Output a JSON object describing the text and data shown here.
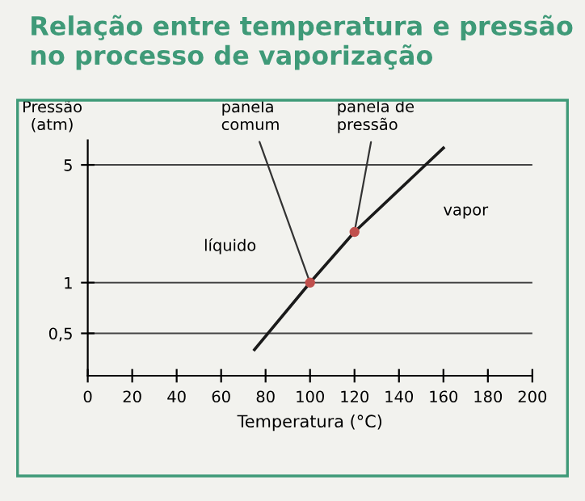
{
  "chart_data": {
    "type": "line",
    "title": "Relação entre temperatura e pressão no processo de vaporização",
    "xlabel": "Temperatura (°C)",
    "ylabel": "Pressão\n(atm)",
    "series": [
      {
        "color": "#1a1a1a",
        "x": [
          75,
          100,
          120,
          160
        ],
        "values": [
          0.4,
          1,
          2,
          6.3
        ]
      },
      {
        "type": "scatter",
        "color": "#c0504d",
        "x": [
          100,
          120
        ],
        "values": [
          1,
          2
        ]
      }
    ],
    "annotations": [
      {
        "text": "panela\ncomum",
        "x": 100,
        "y": 1
      },
      {
        "text": "panela de\npressão",
        "x": 120,
        "y": 2
      },
      "líquido",
      "vapor"
    ],
    "log": "y",
    "xlim": [
      0,
      200
    ],
    "xticks": [
      0,
      20,
      40,
      60,
      80,
      100,
      120,
      140,
      160,
      180,
      200
    ],
    "ylim": [
      0.28,
      7
    ],
    "yticks": [
      {
        "value": 0.5,
        "label": "0,5"
      },
      1,
      5
    ],
    "grid": "y"
  }
}
